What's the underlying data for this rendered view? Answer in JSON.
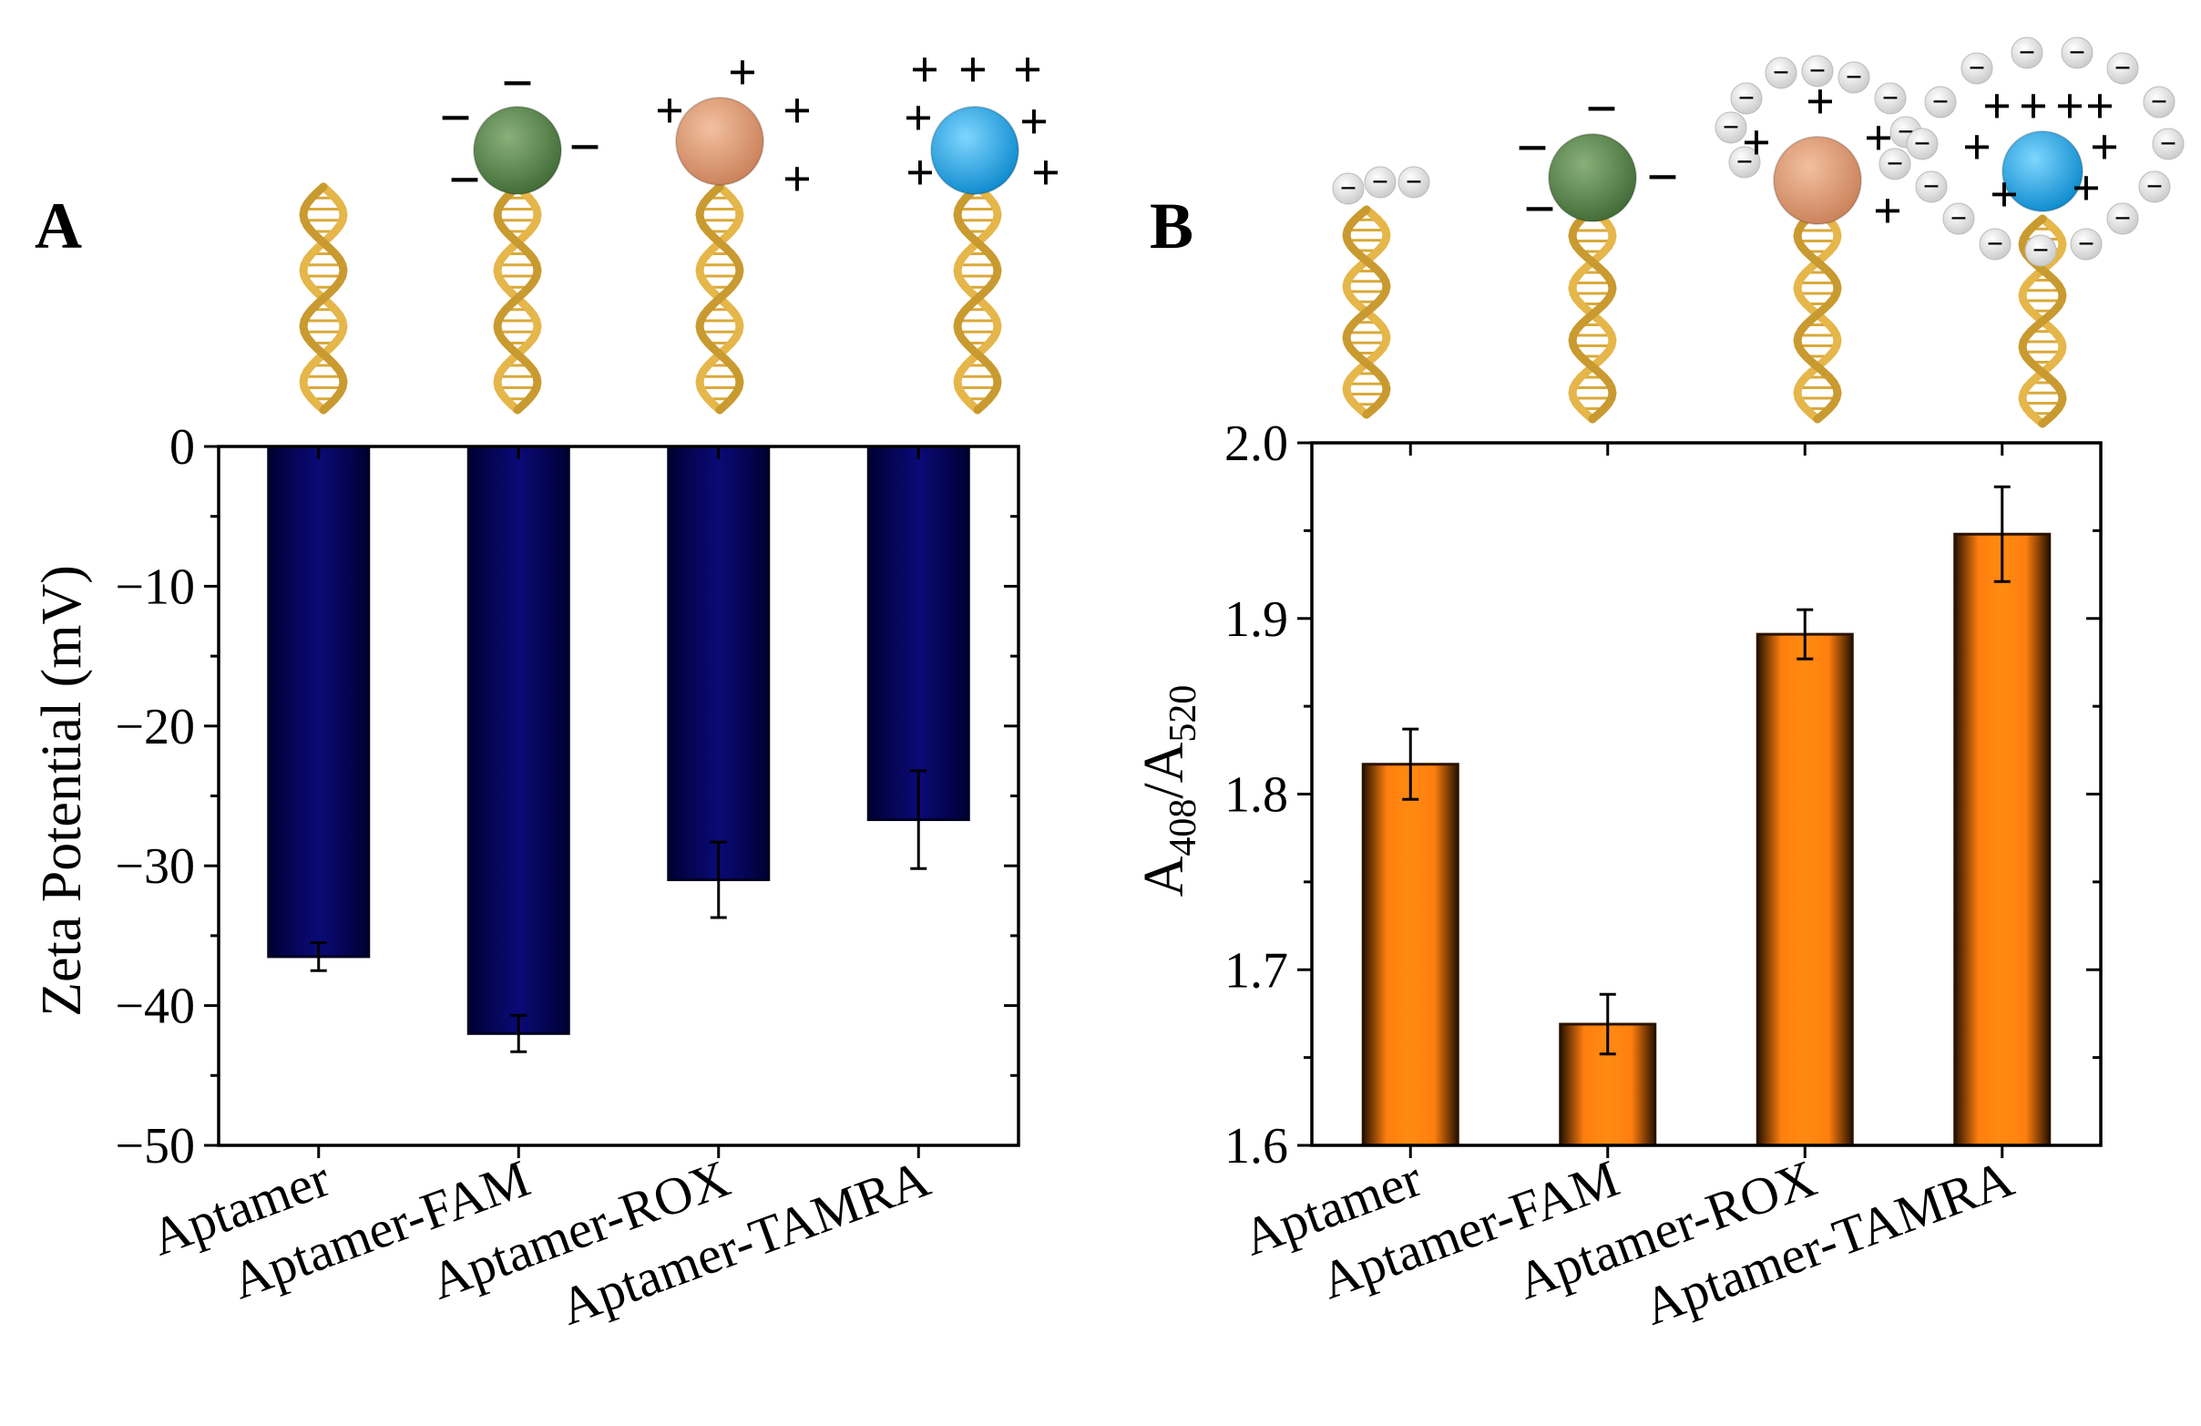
{
  "panels": {
    "a_label": "A",
    "b_label": "B"
  },
  "colors": {
    "bar_a": "#0a0a78",
    "bar_a_edge": "#00002a",
    "bar_b": "#ff7f0e",
    "bar_b_edge": "#3a1a00",
    "minus_charge": "#22dd22",
    "plus_charge": "#ee1111",
    "halo_charge": "#c9a227",
    "dna": "#e5b64a",
    "fam_dye": "#5a8a4a",
    "rox_dye": "#e0a07a",
    "tamra_dye": "#1aa8e8"
  },
  "icons": [
    "dna-helix-icon",
    "fam-dye-sphere-icon",
    "rox-dye-sphere-icon",
    "tamra-dye-sphere-icon",
    "negative-charge-icon",
    "positive-charge-icon",
    "gold-nanoparticle-icon"
  ],
  "charges": {
    "minus": "−",
    "plus": "+"
  },
  "chart_data": [
    {
      "type": "bar",
      "panel": "A",
      "categories": [
        "Aptamer",
        "Aptamer-FAM",
        "Aptamer-ROX",
        "Aptamer-TAMRA"
      ],
      "values": [
        -36.5,
        -42,
        -31,
        -26.7
      ],
      "errors": [
        1.0,
        1.3,
        2.7,
        3.5
      ],
      "title": "",
      "xlabel": "",
      "ylabel": "Zeta Potential (mV)",
      "ylim": [
        -50,
        0
      ],
      "yticks": [
        0,
        -10,
        -20,
        -30,
        -40,
        -50
      ],
      "ytick_labels": [
        "0",
        "−10",
        "−20",
        "−30",
        "−40",
        "−50"
      ],
      "grid": false
    },
    {
      "type": "bar",
      "panel": "B",
      "categories": [
        "Aptamer",
        "Aptamer-FAM",
        "Aptamer-ROX",
        "Aptamer-TAMRA"
      ],
      "values": [
        1.817,
        1.669,
        1.891,
        1.948
      ],
      "errors": [
        0.02,
        0.017,
        0.014,
        0.027
      ],
      "title": "",
      "xlabel": "",
      "ylabel_main": "A",
      "ylabel_sub1": "408",
      "ylabel_slash": "/A",
      "ylabel_sub2": "520",
      "ylim": [
        1.6,
        2.0
      ],
      "yticks": [
        1.6,
        1.7,
        1.8,
        1.9,
        2.0
      ],
      "ytick_labels": [
        "1.6",
        "1.7",
        "1.8",
        "1.9",
        "2.0"
      ],
      "grid": false
    }
  ]
}
